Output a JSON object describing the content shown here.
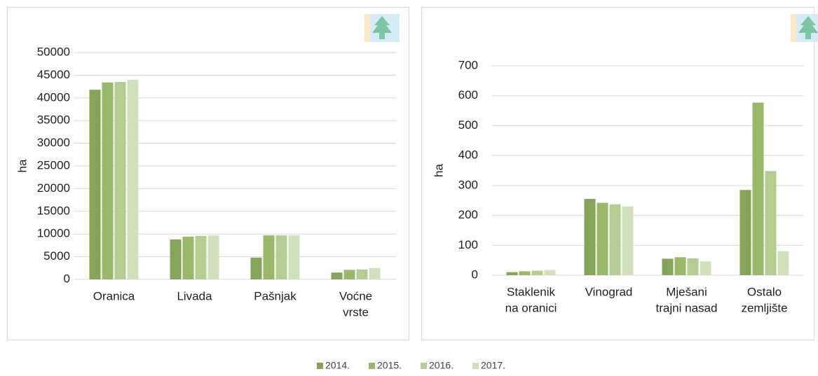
{
  "chart_data": [
    {
      "type": "bar",
      "y_label": "ha",
      "categories": [
        [
          "Oranica"
        ],
        [
          "Livada"
        ],
        [
          "Pašnjak"
        ],
        [
          "Voćne",
          "vrste"
        ]
      ],
      "series": [
        {
          "name": "2014.",
          "color": "#86a35a",
          "values": [
            41800,
            8800,
            4800,
            1500
          ]
        },
        {
          "name": "2015.",
          "color": "#99b86a",
          "values": [
            43400,
            9400,
            9700,
            2100
          ]
        },
        {
          "name": "2016.",
          "color": "#b5cd93",
          "values": [
            43500,
            9600,
            9700,
            2200
          ]
        },
        {
          "name": "2017.",
          "color": "#d2e1bd",
          "values": [
            44000,
            9700,
            9700,
            2500
          ]
        }
      ],
      "ylim": [
        0,
        50000
      ],
      "yticks": [
        0,
        5000,
        10000,
        15000,
        20000,
        25000,
        30000,
        35000,
        40000,
        45000,
        50000
      ],
      "grid": true
    },
    {
      "type": "bar",
      "y_label": "ha",
      "categories": [
        [
          "Staklenik",
          "na oranici"
        ],
        [
          "Vinograd"
        ],
        [
          "Mješani",
          "trajni nasad"
        ],
        [
          "Ostalo",
          "zemljište"
        ]
      ],
      "series": [
        {
          "color": "#86a35a",
          "values": [
            10,
            255,
            55,
            285
          ]
        },
        {
          "color": "#99b86a",
          "values": [
            13,
            242,
            60,
            577
          ]
        },
        {
          "color": "#b5cd93",
          "values": [
            15,
            237,
            56,
            348
          ]
        },
        {
          "color": "#d2e1bd",
          "values": [
            17,
            230,
            46,
            80
          ]
        }
      ],
      "ylim": [
        0,
        700
      ],
      "yticks": [
        0,
        100,
        200,
        300,
        400,
        500,
        600,
        700
      ],
      "grid": true
    }
  ]
}
